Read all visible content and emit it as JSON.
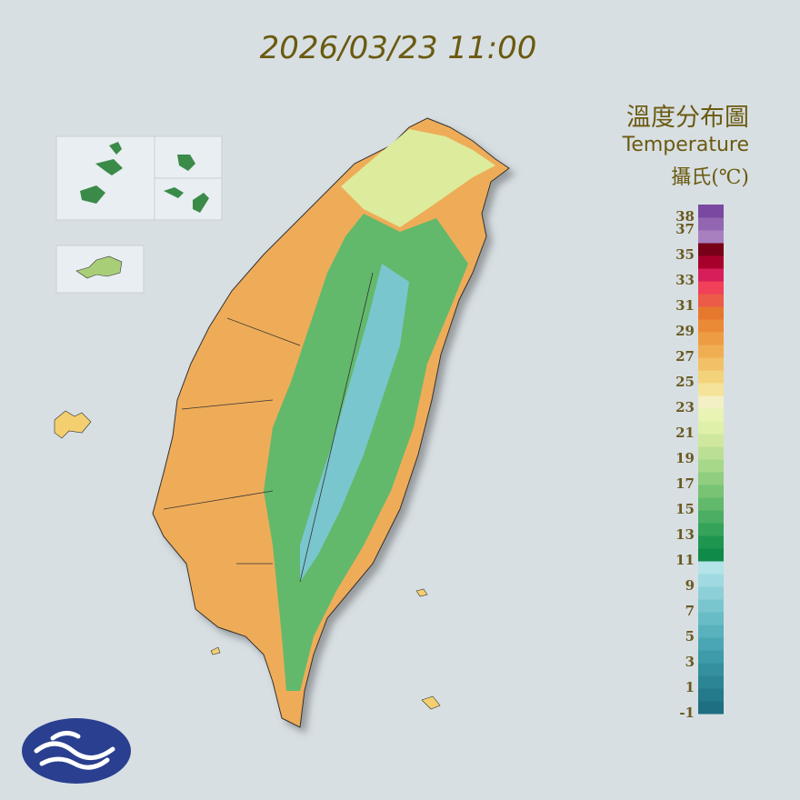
{
  "header": {
    "timestamp": "2026/03/23 11:00"
  },
  "legend": {
    "title": "溫度分布圖",
    "subtitle": "Temperature",
    "unit": "攝氏(℃)",
    "ticks": [
      38,
      37,
      35,
      33,
      31,
      29,
      27,
      25,
      23,
      21,
      19,
      17,
      15,
      13,
      11,
      9,
      7,
      5,
      3,
      1,
      -1
    ],
    "colors": [
      "#1e6f80",
      "#247a8a",
      "#2b8594",
      "#34909e",
      "#3e9ba8",
      "#4aa6b2",
      "#58b1bc",
      "#68bcc6",
      "#7ac6cf",
      "#8dd0d8",
      "#a0dae0",
      "#b4e3e8",
      "#108a48",
      "#1f9650",
      "#35a35a",
      "#4bae62",
      "#62b96b",
      "#79c374",
      "#90cd7e",
      "#a7d788",
      "#bce093",
      "#cfe89e",
      "#dff0a8",
      "#e8f3b4",
      "#f3f0c4",
      "#f5e39a",
      "#f3d27c",
      "#f2c066",
      "#f0ae52",
      "#ee9c42",
      "#ea8a36",
      "#e6782e",
      "#ec5a48",
      "#f0405a",
      "#d81e5a",
      "#a8002c",
      "#780018",
      "#a880c0",
      "#9266b0",
      "#7a48a0"
    ]
  }
}
